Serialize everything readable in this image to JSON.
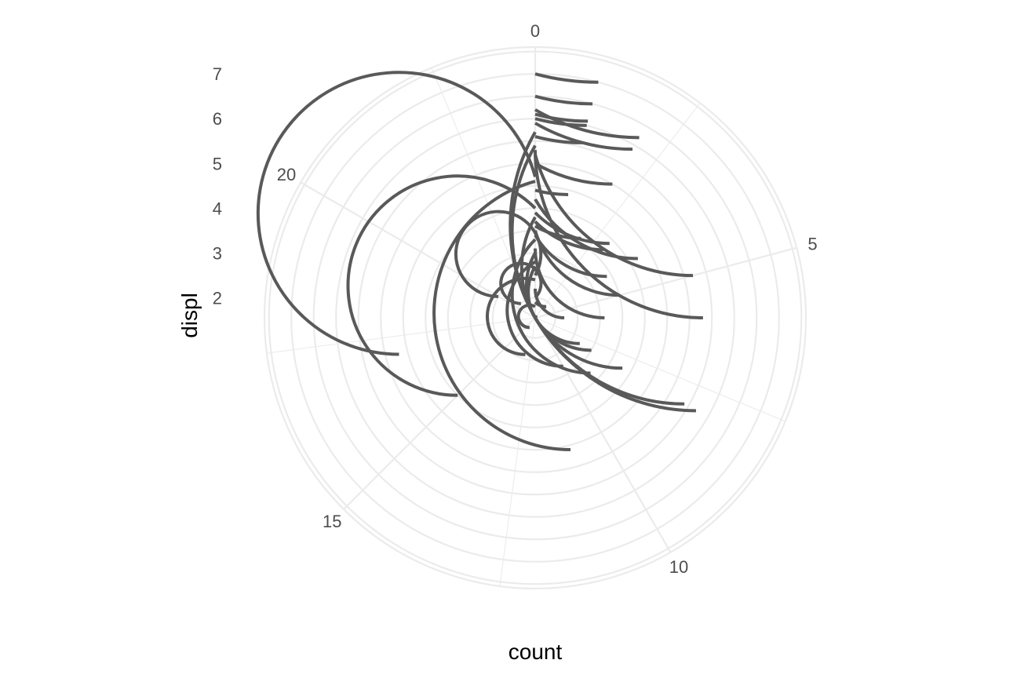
{
  "chart_data": {
    "type": "bar",
    "coord": "polar",
    "theta_axis": "count",
    "r_axis": "displ",
    "xlabel": "count",
    "ylabel": "displ",
    "count_range": [
      0,
      24
    ],
    "displ_range": [
      1.55,
      7.6
    ],
    "count_ticks": [
      0,
      5,
      10,
      15,
      20
    ],
    "displ_ticks": [
      2,
      3,
      4,
      5,
      6,
      7
    ],
    "grid": true,
    "bar_color": "#595959",
    "grid_color": "#ebebeb",
    "bars": [
      {
        "displ": 1.6,
        "count": 5
      },
      {
        "displ": 1.8,
        "count": 14
      },
      {
        "displ": 1.9,
        "count": 3
      },
      {
        "displ": 2.0,
        "count": 21
      },
      {
        "displ": 2.2,
        "count": 6
      },
      {
        "displ": 2.4,
        "count": 13
      },
      {
        "displ": 2.5,
        "count": 20
      },
      {
        "displ": 2.7,
        "count": 8
      },
      {
        "displ": 2.8,
        "count": 10
      },
      {
        "displ": 3.0,
        "count": 8
      },
      {
        "displ": 3.1,
        "count": 6
      },
      {
        "displ": 3.3,
        "count": 9
      },
      {
        "displ": 3.4,
        "count": 4
      },
      {
        "displ": 3.5,
        "count": 5
      },
      {
        "displ": 3.6,
        "count": 2
      },
      {
        "displ": 3.7,
        "count": 3
      },
      {
        "displ": 3.8,
        "count": 8
      },
      {
        "displ": 3.9,
        "count": 3
      },
      {
        "displ": 4.0,
        "count": 15
      },
      {
        "displ": 4.2,
        "count": 4
      },
      {
        "displ": 4.4,
        "count": 1
      },
      {
        "displ": 4.6,
        "count": 11
      },
      {
        "displ": 4.7,
        "count": 17
      },
      {
        "displ": 5.0,
        "count": 2
      },
      {
        "displ": 5.2,
        "count": 5
      },
      {
        "displ": 5.3,
        "count": 6
      },
      {
        "displ": 5.4,
        "count": 8
      },
      {
        "displ": 5.6,
        "count": 1
      },
      {
        "displ": 5.7,
        "count": 8
      },
      {
        "displ": 5.9,
        "count": 2
      },
      {
        "displ": 6.0,
        "count": 1
      },
      {
        "displ": 6.1,
        "count": 1
      },
      {
        "displ": 6.2,
        "count": 2
      },
      {
        "displ": 6.5,
        "count": 1
      },
      {
        "displ": 7.0,
        "count": 1
      }
    ]
  }
}
